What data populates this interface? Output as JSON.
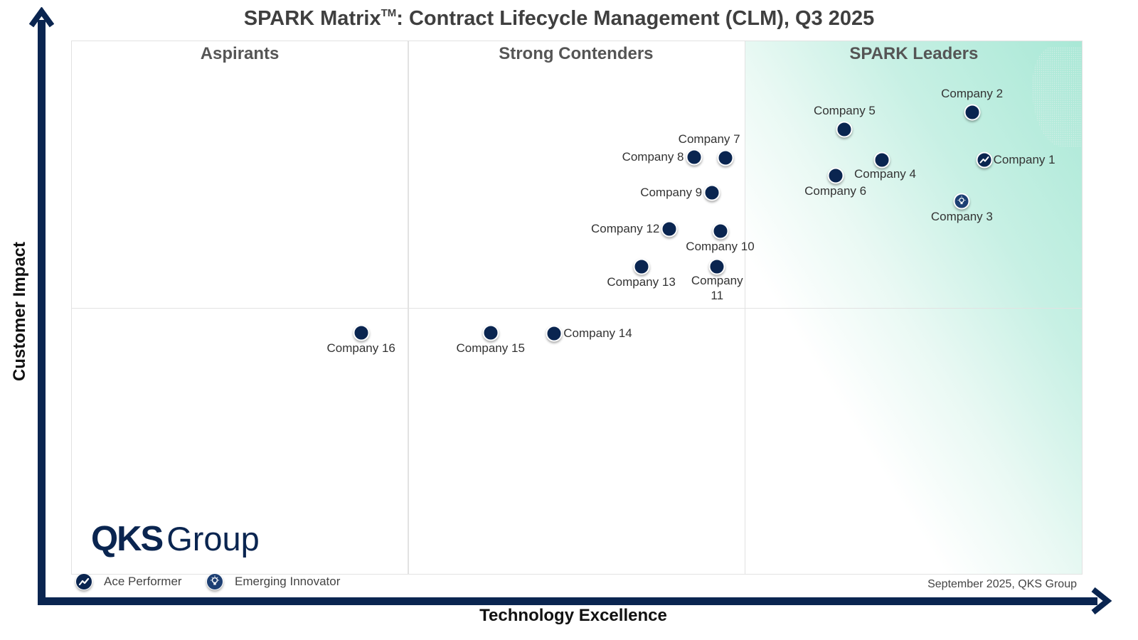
{
  "chart_data": {
    "type": "scatter",
    "title": "SPARK Matrix",
    "title_mark": "TM",
    "title_rest": ": Contract Lifecycle Management (CLM), Q3 2025",
    "xlabel": "Technology Excellence",
    "ylabel": "Customer Impact",
    "xlim": [
      0,
      100
    ],
    "ylim": [
      0,
      100
    ],
    "grid": false,
    "quadrants": [
      {
        "name": "Aspirants",
        "x_range": [
          0,
          33.2
        ]
      },
      {
        "name": "Strong Contenders",
        "x_range": [
          33.2,
          66.5
        ]
      },
      {
        "name": "SPARK Leaders",
        "x_range": [
          66.5,
          100
        ]
      }
    ],
    "dividers": {
      "x": [
        33.2,
        66.5
      ],
      "y": [
        50.1
      ]
    },
    "points": [
      {
        "label": "Company 1",
        "x": 90.2,
        "y": 77.8,
        "badge": "ace",
        "label_pos": "right"
      },
      {
        "label": "Company 2",
        "x": 89.0,
        "y": 86.7,
        "badge": "none",
        "label_pos": "top"
      },
      {
        "label": "Company 3",
        "x": 88.0,
        "y": 70.0,
        "badge": "innovator",
        "label_pos": "bottom"
      },
      {
        "label": "Company 4",
        "x": 80.1,
        "y": 77.8,
        "badge": "none",
        "label_pos": "bottom-right"
      },
      {
        "label": "Company 5",
        "x": 76.4,
        "y": 83.5,
        "badge": "none",
        "label_pos": "top"
      },
      {
        "label": "Company 6",
        "x": 75.5,
        "y": 74.8,
        "badge": "none",
        "label_pos": "bottom"
      },
      {
        "label": "Company 7",
        "x": 64.6,
        "y": 78.2,
        "badge": "none",
        "label_pos": "top-left"
      },
      {
        "label": "Company 8",
        "x": 61.5,
        "y": 78.3,
        "badge": "none",
        "label_pos": "left"
      },
      {
        "label": "Company 9",
        "x": 63.3,
        "y": 71.6,
        "badge": "none",
        "label_pos": "left"
      },
      {
        "label": "Company 10",
        "x": 64.1,
        "y": 64.4,
        "badge": "none",
        "label_pos": "bottom"
      },
      {
        "label": "Company 11",
        "x": 63.8,
        "y": 57.8,
        "badge": "none",
        "label_pos": "bottom-wrap"
      },
      {
        "label": "Company 12",
        "x": 59.1,
        "y": 64.8,
        "badge": "none",
        "label_pos": "left"
      },
      {
        "label": "Company 13",
        "x": 56.3,
        "y": 57.8,
        "badge": "none",
        "label_pos": "bottom"
      },
      {
        "label": "Company 14",
        "x": 47.7,
        "y": 45.3,
        "badge": "none",
        "label_pos": "right"
      },
      {
        "label": "Company 15",
        "x": 41.4,
        "y": 45.4,
        "badge": "none",
        "label_pos": "bottom"
      },
      {
        "label": "Company 16",
        "x": 28.6,
        "y": 45.4,
        "badge": "none",
        "label_pos": "bottom"
      }
    ],
    "legend": [
      {
        "badge": "ace",
        "label": "Ace Performer"
      },
      {
        "badge": "innovator",
        "label": "Emerging Innovator"
      }
    ],
    "legend_position": "bottom-left"
  },
  "logo": {
    "bold": "QKS",
    "regular": "Group"
  },
  "footnote": "September 2025, QKS Group",
  "colors": {
    "marker": "#0a2550",
    "axis": "#0a2550",
    "leader_gradient": "#a9e8d6",
    "divider": "#e2e2e2"
  }
}
